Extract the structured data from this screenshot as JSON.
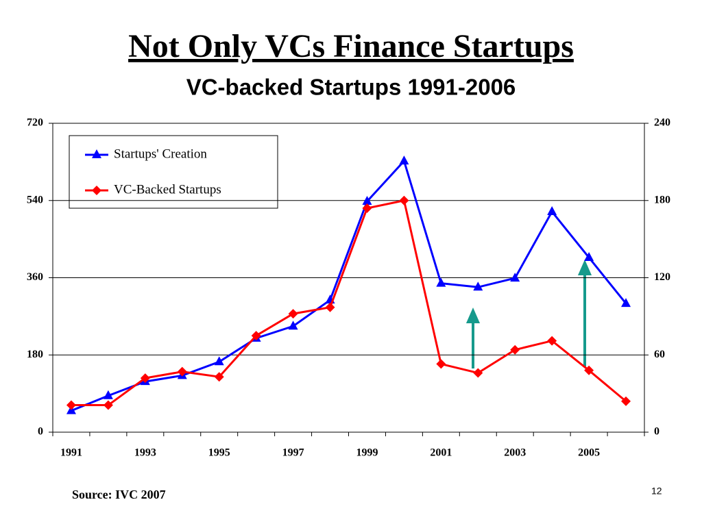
{
  "chart_data": {
    "type": "line",
    "title": "Not Only VCs Finance Startups",
    "subtitle": "VC-backed Startups 1991-2006",
    "categories": [
      "1991",
      null,
      "1993",
      null,
      "1995",
      null,
      "1997",
      null,
      "1999",
      null,
      "2001",
      null,
      "2003",
      null,
      "2005",
      null
    ],
    "series": [
      {
        "name": "Startups' Creation",
        "color": "#0000ff",
        "marker": "triangle",
        "values": [
          50,
          85,
          118,
          132,
          164,
          219,
          247,
          308,
          538,
          632,
          347,
          338,
          359,
          514,
          407,
          300
        ]
      },
      {
        "name": "VC-Backed Startups",
        "color": "#ff0000",
        "marker": "diamond",
        "axis": "y2",
        "values": [
          21,
          21,
          42,
          47,
          43,
          75,
          92,
          97,
          174,
          180,
          53,
          46,
          64,
          71,
          48,
          24
        ]
      }
    ],
    "ylim": [
      0,
      720
    ],
    "yticks": [
      0,
      180,
      360,
      540,
      720
    ],
    "y2lim": [
      0,
      240
    ],
    "y2ticks": [
      0,
      60,
      120,
      180,
      240
    ],
    "grid": true,
    "legend": "top-left",
    "source": "Source: IVC 2007"
  },
  "page_number": "12"
}
